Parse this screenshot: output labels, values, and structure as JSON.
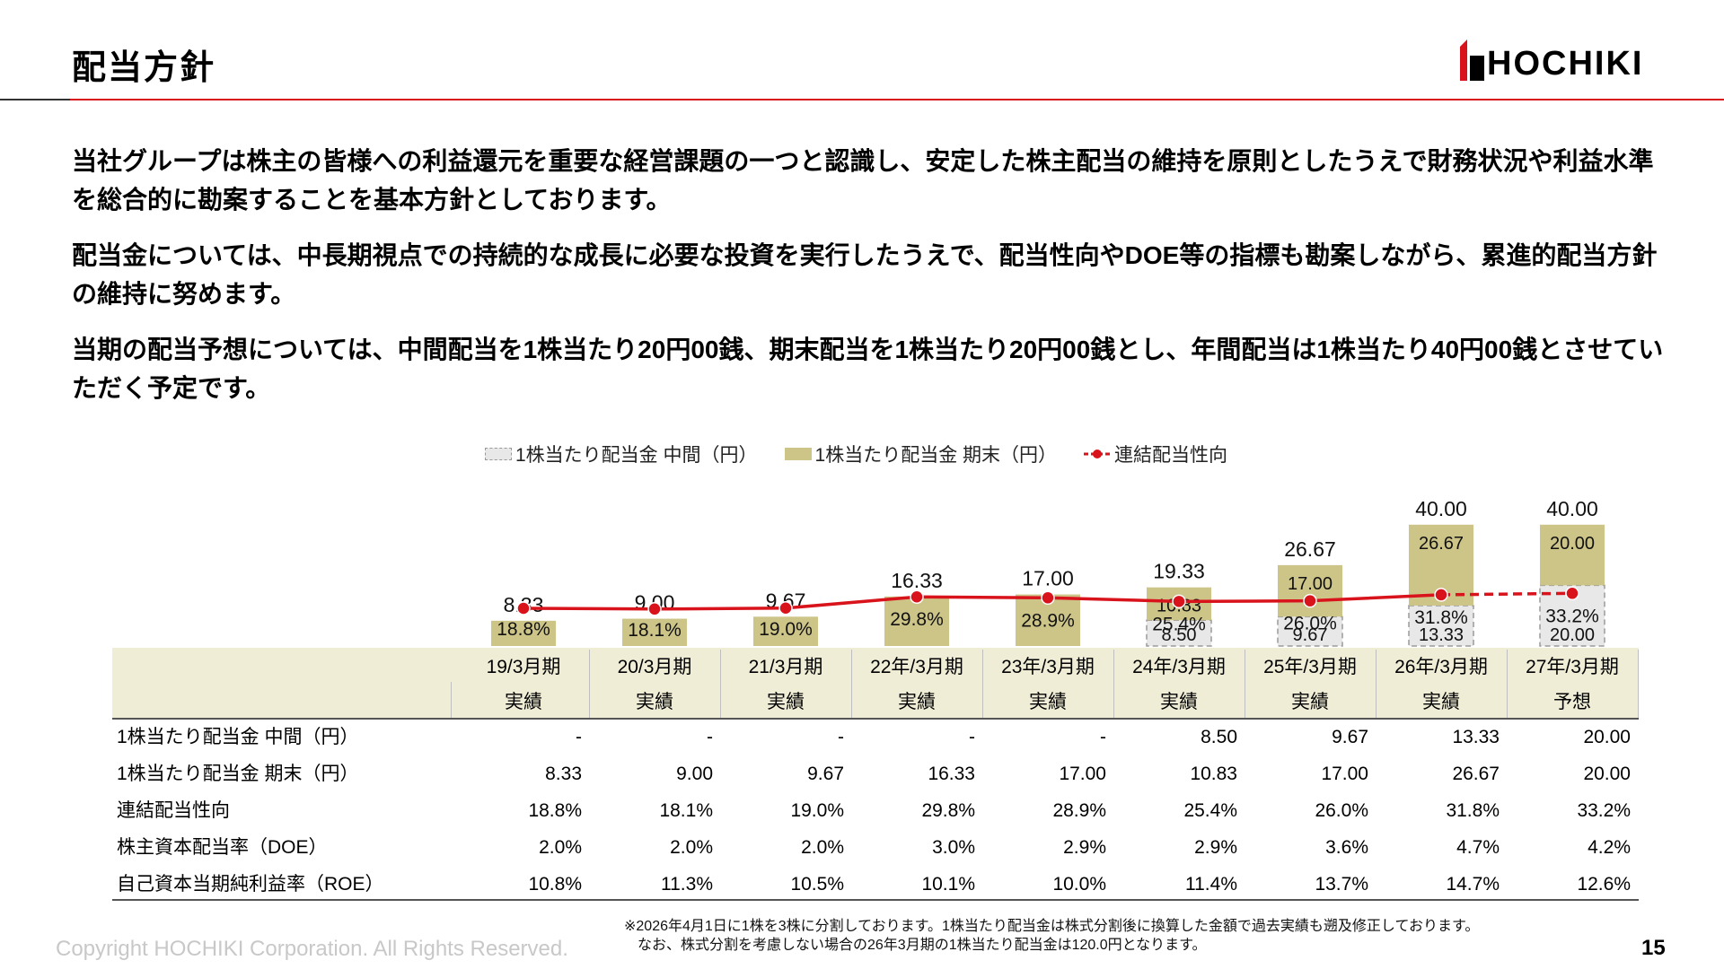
{
  "page": {
    "title": "配当方針",
    "logo_text": "HOCHIKI",
    "paragraphs": [
      "当社グループは株主の皆様への利益還元を重要な経営課題の一つと認識し、安定した株主配当の維持を原則としたうえで財務状況や利益水準を総合的に勘案することを基本方針としております。",
      "配当金については、中長期視点での持続的な成長に必要な投資を実行したうえで、配当性向やDOE等の指標も勘案しながら、累進的配当方針の維持に努めます。",
      "当期の配当予想については、中間配当を1株当たり20円00銭、期末配当を1株当たり20円00銭とし、年間配当は1株当たり40円00銭とさせていただく予定です。"
    ],
    "footnote_1": "※2026年4月1日に1株を3株に分割しております。1株当たり配当金は株式分割後に換算した金額で過去実績も遡及修正しております。",
    "footnote_2": "なお、株式分割を考慮しない場合の26年3月期の1株当たり配当金は120.0円となります。",
    "copyright": "Copyright HOCHIKI Corporation. All Rights Reserved.",
    "page_number": "15",
    "colors": {
      "accent": "#d9131c",
      "final_bar": "#cdc488",
      "interim_bar": "#e8e8e8",
      "header_band": "#efedd6"
    }
  },
  "chart_data": {
    "type": "bar",
    "stacked": true,
    "categories": [
      "19/3月期",
      "20/3月期",
      "21/3月期",
      "22年/3月期",
      "23年/3月期",
      "24年/3月期",
      "25年/3月期",
      "26年/3月期",
      "27年/3月期"
    ],
    "status": [
      "実績",
      "実績",
      "実績",
      "実績",
      "実績",
      "実績",
      "実績",
      "実績",
      "予想"
    ],
    "series": [
      {
        "name": "1株当たり配当金 中間（円）",
        "values": [
          0,
          0,
          0,
          0,
          0,
          8.5,
          9.67,
          13.33,
          20.0
        ],
        "labels": [
          "",
          "",
          "",
          "",
          "",
          "8.50",
          "9.67",
          "13.33",
          "20.00"
        ]
      },
      {
        "name": "1株当たり配当金 期末（円）",
        "values": [
          8.33,
          9.0,
          9.67,
          16.33,
          17.0,
          10.83,
          17.0,
          26.67,
          20.0
        ],
        "labels": [
          "",
          "",
          "",
          "",
          "",
          "10.83",
          "17.00",
          "26.67",
          "20.00"
        ]
      },
      {
        "name": "連結配当性向",
        "type": "line",
        "values": [
          18.8,
          18.1,
          19.0,
          29.8,
          28.9,
          25.4,
          26.0,
          31.8,
          33.2
        ],
        "labels": [
          "18.8%",
          "18.1%",
          "19.0%",
          "29.8%",
          "28.9%",
          "25.4%",
          "26.0%",
          "31.8%",
          "33.2%"
        ]
      }
    ],
    "totals": [
      "8.33",
      "9.00",
      "9.67",
      "16.33",
      "17.00",
      "19.33",
      "26.67",
      "40.00",
      "40.00"
    ],
    "legend_position": "top",
    "table": {
      "rows": [
        {
          "label": "1株当たり配当金 中間（円）",
          "values": [
            "-",
            "-",
            "-",
            "-",
            "-",
            "8.50",
            "9.67",
            "13.33",
            "20.00"
          ]
        },
        {
          "label": "1株当たり配当金 期末（円）",
          "values": [
            "8.33",
            "9.00",
            "9.67",
            "16.33",
            "17.00",
            "10.83",
            "17.00",
            "26.67",
            "20.00"
          ]
        },
        {
          "label": "連結配当性向",
          "values": [
            "18.8%",
            "18.1%",
            "19.0%",
            "29.8%",
            "28.9%",
            "25.4%",
            "26.0%",
            "31.8%",
            "33.2%"
          ]
        },
        {
          "label": "株主資本配当率（DOE）",
          "values": [
            "2.0%",
            "2.0%",
            "2.0%",
            "3.0%",
            "2.9%",
            "2.9%",
            "3.6%",
            "4.7%",
            "4.2%"
          ]
        },
        {
          "label": "自己資本当期純利益率（ROE）",
          "values": [
            "10.8%",
            "11.3%",
            "10.5%",
            "10.1%",
            "10.0%",
            "11.4%",
            "13.7%",
            "14.7%",
            "12.6%"
          ]
        }
      ]
    }
  }
}
